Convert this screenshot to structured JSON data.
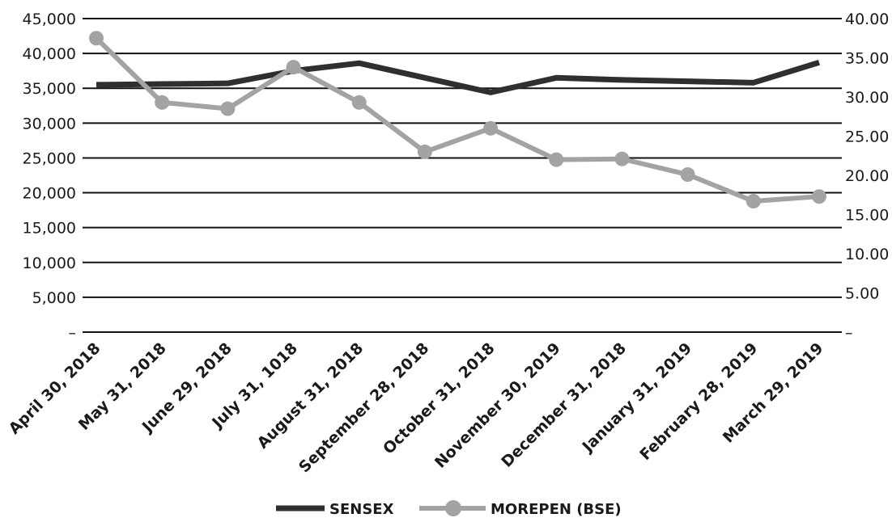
{
  "chart_data": {
    "type": "line",
    "categories": [
      "April 30, 2018",
      "May 31, 2018",
      "June 29, 2018",
      "July 31, 1018",
      "August 31, 2018",
      "September 28, 2018",
      "October 31, 2018",
      "November 30, 2019",
      "December 31, 2018",
      "January 31, 2019",
      "February 28, 2019",
      "March 29, 2019"
    ],
    "series": [
      {
        "name": "SENSEX",
        "axis": "left",
        "color": "#2f2f2f",
        "marker": "none",
        "values": [
          35500,
          35600,
          35700,
          37500,
          38600,
          36500,
          34400,
          36500,
          36200,
          36000,
          35800,
          38700
        ]
      },
      {
        "name": "MOREPEN (BSE)",
        "axis": "right",
        "color": "#a3a3a3",
        "marker": "circle",
        "values": [
          37.5,
          29.3,
          28.5,
          33.8,
          29.3,
          23.0,
          26.0,
          22.0,
          22.1,
          20.1,
          16.7,
          17.3
        ]
      }
    ],
    "y_left": {
      "ylim": [
        0,
        45000
      ],
      "ticks": [
        0,
        5000,
        10000,
        15000,
        20000,
        25000,
        30000,
        35000,
        40000,
        45000
      ],
      "tick_labels": [
        "–",
        "5,000",
        "10,000",
        "15,000",
        "20,000",
        "25,000",
        "30,000",
        "35,000",
        "40,000",
        "45,000"
      ]
    },
    "y_right": {
      "ylim": [
        0,
        40
      ],
      "ticks": [
        0,
        5,
        10,
        15,
        20,
        25,
        30,
        35,
        40
      ],
      "tick_labels": [
        "–",
        "5.00",
        "10.00",
        "15.00",
        "20.00",
        "25.00",
        "30.00",
        "35.00",
        "40.00"
      ]
    },
    "grid": true,
    "legend_position": "bottom-center",
    "title": "",
    "xlabel": "",
    "ylabel": ""
  }
}
